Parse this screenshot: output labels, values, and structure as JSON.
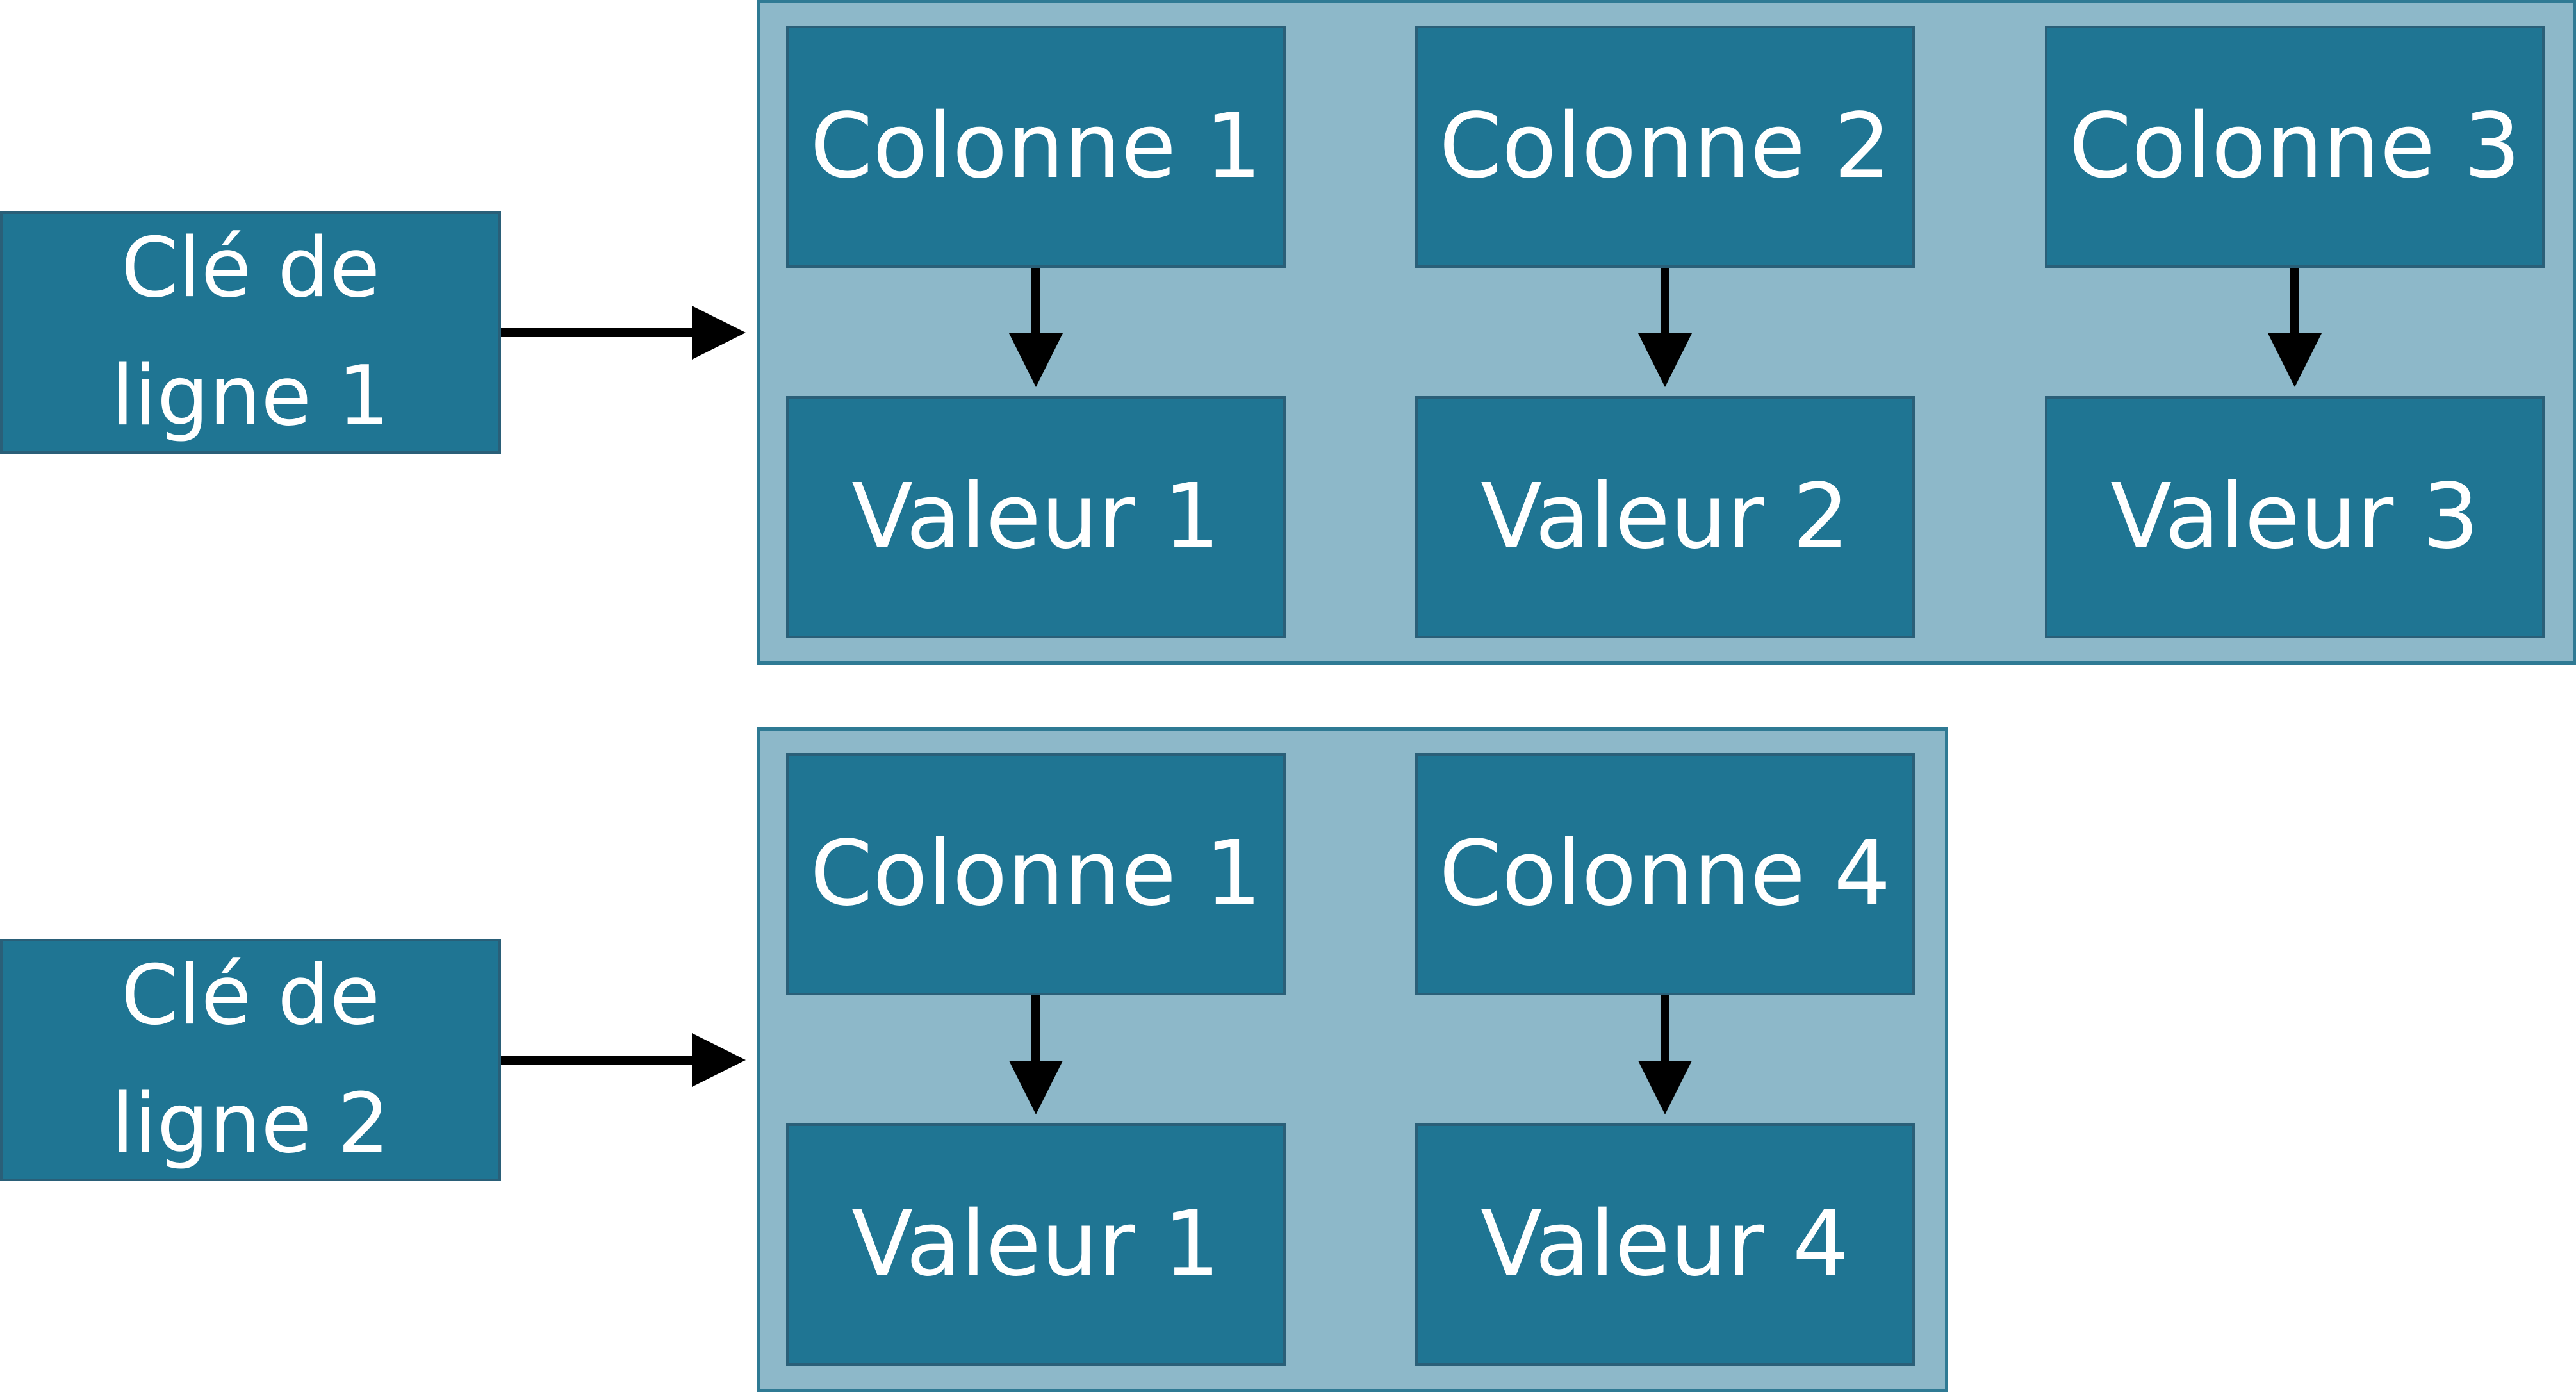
{
  "rows": [
    {
      "key": "Clé de\nligne 1",
      "cells": [
        {
          "column": "Colonne 1",
          "value": "Valeur 1"
        },
        {
          "column": "Colonne 2",
          "value": "Valeur 2"
        },
        {
          "column": "Colonne 3",
          "value": "Valeur 3"
        }
      ]
    },
    {
      "key": "Clé de\nligne 2",
      "cells": [
        {
          "column": "Colonne 1",
          "value": "Valeur 1"
        },
        {
          "column": "Colonne 4",
          "value": "Valeur 4"
        }
      ]
    }
  ],
  "colors": {
    "box_fill": "#1f7593",
    "box_border": "#2a5f78",
    "group_fill": "#8db8c9",
    "group_border": "#2f7a94",
    "arrow": "#000000",
    "text": "#ffffff"
  }
}
